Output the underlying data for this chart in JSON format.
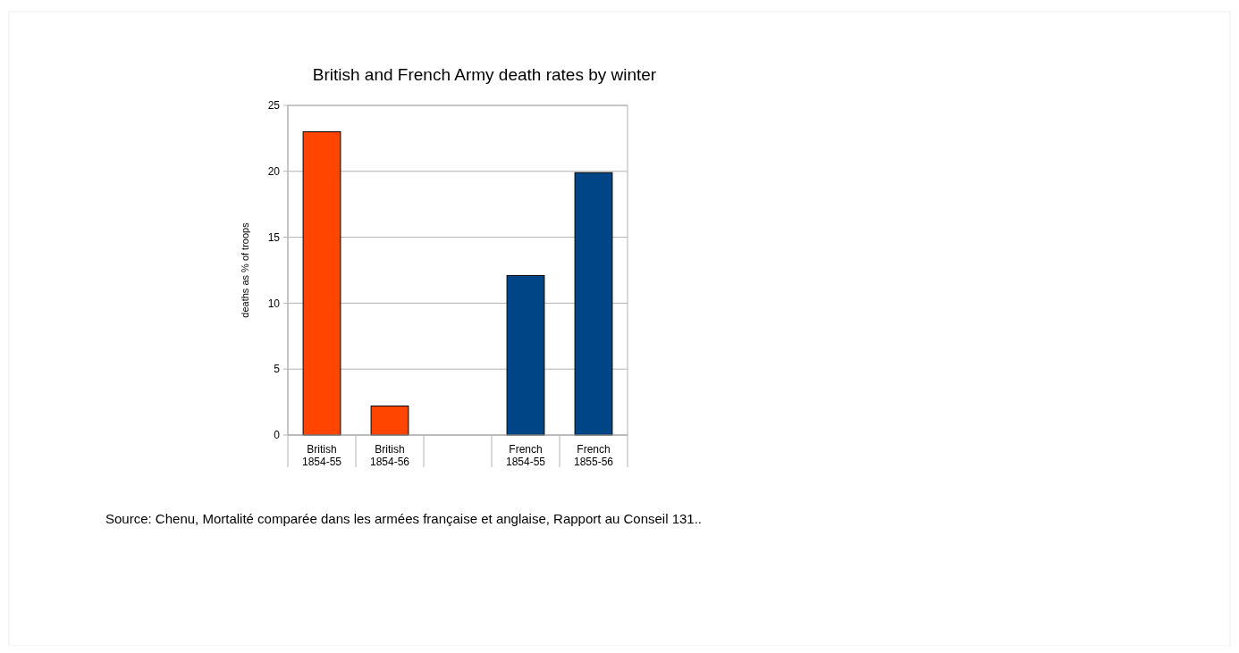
{
  "chart_data": {
    "type": "bar",
    "title": "British and French Army death rates by winter",
    "ylabel": "deaths as % of troops",
    "categories": [
      "British 1854-55",
      "British 1854-56",
      null,
      "French 1854-55",
      "French 1855-56"
    ],
    "values": [
      23,
      2.2,
      null,
      12.1,
      19.9
    ],
    "colors": [
      "#ff4500",
      "#ff4500",
      null,
      "#004586",
      "#004586"
    ],
    "ylim": [
      0,
      25
    ],
    "yticks": [
      0,
      5,
      10,
      15,
      20,
      25
    ],
    "grid": "y",
    "annotations": [
      "Source: Chenu, Mortalité comparée dans les armées française et anglaise, Rapport au Conseil 131.."
    ]
  }
}
